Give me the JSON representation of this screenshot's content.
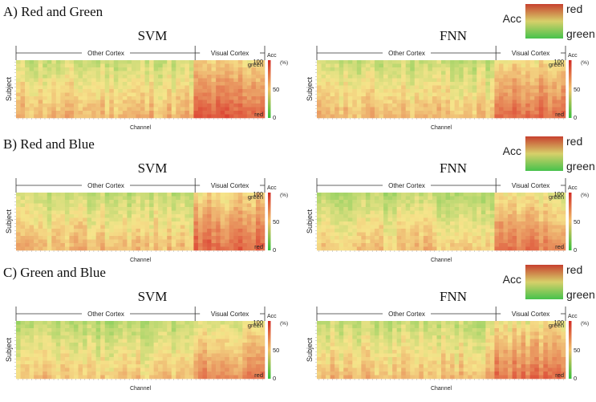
{
  "chart_data": {
    "type": "heatmap",
    "panels": [
      {
        "label": "A) Red and Green",
        "legend": {
          "title": "Acc",
          "top": "red",
          "bottom": "green"
        },
        "charts": [
          {
            "title": "SVM",
            "region_left": "Other Cortex",
            "region_right": "Visual Cortex",
            "xlabel": "Channel",
            "ylabel": "Subject",
            "scale_title": "Acc",
            "scale_unit": "(%)",
            "scale_ticks": [
              "100",
              "50",
              "0"
            ],
            "corner_top": "green",
            "corner_bottom": "red",
            "channels": 56,
            "subjects": 16,
            "visual_start": 0.72,
            "base_other": 52,
            "base_visual": 72
          },
          {
            "title": "FNN",
            "region_left": "Other Cortex",
            "region_right": "Visual Cortex",
            "xlabel": "Channel",
            "ylabel": "Subject",
            "scale_title": "Acc",
            "scale_unit": "(%)",
            "scale_ticks": [
              "100",
              "50",
              "0"
            ],
            "corner_top": "green",
            "corner_bottom": "red",
            "channels": 56,
            "subjects": 16,
            "visual_start": 0.72,
            "base_other": 50,
            "base_visual": 68
          }
        ]
      },
      {
        "label": "B) Red and Blue",
        "legend": {
          "title": "Acc",
          "top": "red",
          "bottom": "green"
        },
        "charts": [
          {
            "title": "SVM",
            "region_left": "Other Cortex",
            "region_right": "Visual Cortex",
            "xlabel": "Channel",
            "ylabel": "Subject",
            "scale_title": "Acc",
            "scale_unit": "(%)",
            "scale_ticks": [
              "100",
              "50",
              "0"
            ],
            "corner_top": "green",
            "corner_bottom": "red",
            "channels": 56,
            "subjects": 16,
            "visual_start": 0.72,
            "base_other": 50,
            "base_visual": 70
          },
          {
            "title": "FNN",
            "region_left": "Other Cortex",
            "region_right": "Visual Cortex",
            "xlabel": "Channel",
            "ylabel": "Subject",
            "scale_title": "Acc",
            "scale_unit": "(%)",
            "scale_ticks": [
              "100",
              "50",
              "0"
            ],
            "corner_top": "green",
            "corner_bottom": "red",
            "channels": 56,
            "subjects": 16,
            "visual_start": 0.72,
            "base_other": 48,
            "base_visual": 64
          }
        ]
      },
      {
        "label": "C) Green and Blue",
        "legend": {
          "title": "Acc",
          "top": "red",
          "bottom": "green"
        },
        "charts": [
          {
            "title": "SVM",
            "region_left": "Other Cortex",
            "region_right": "Visual Cortex",
            "xlabel": "Channel",
            "ylabel": "Subject",
            "scale_title": "Acc",
            "scale_unit": "(%)",
            "scale_ticks": [
              "100",
              "50",
              "0"
            ],
            "corner_top": "green",
            "corner_bottom": "red",
            "channels": 56,
            "subjects": 16,
            "visual_start": 0.72,
            "base_other": 46,
            "base_visual": 62
          },
          {
            "title": "FNN",
            "region_left": "Other Cortex",
            "region_right": "Visual Cortex",
            "xlabel": "Channel",
            "ylabel": "Subject",
            "scale_title": "Acc",
            "scale_unit": "(%)",
            "scale_ticks": [
              "100",
              "50",
              "0"
            ],
            "corner_top": "green",
            "corner_bottom": "red",
            "channels": 56,
            "subjects": 16,
            "visual_start": 0.72,
            "base_other": 50,
            "base_visual": 66
          }
        ]
      }
    ],
    "colors": {
      "low": "#3cbf3c",
      "mid": "#f6e48a",
      "high": "#d9342a"
    }
  }
}
